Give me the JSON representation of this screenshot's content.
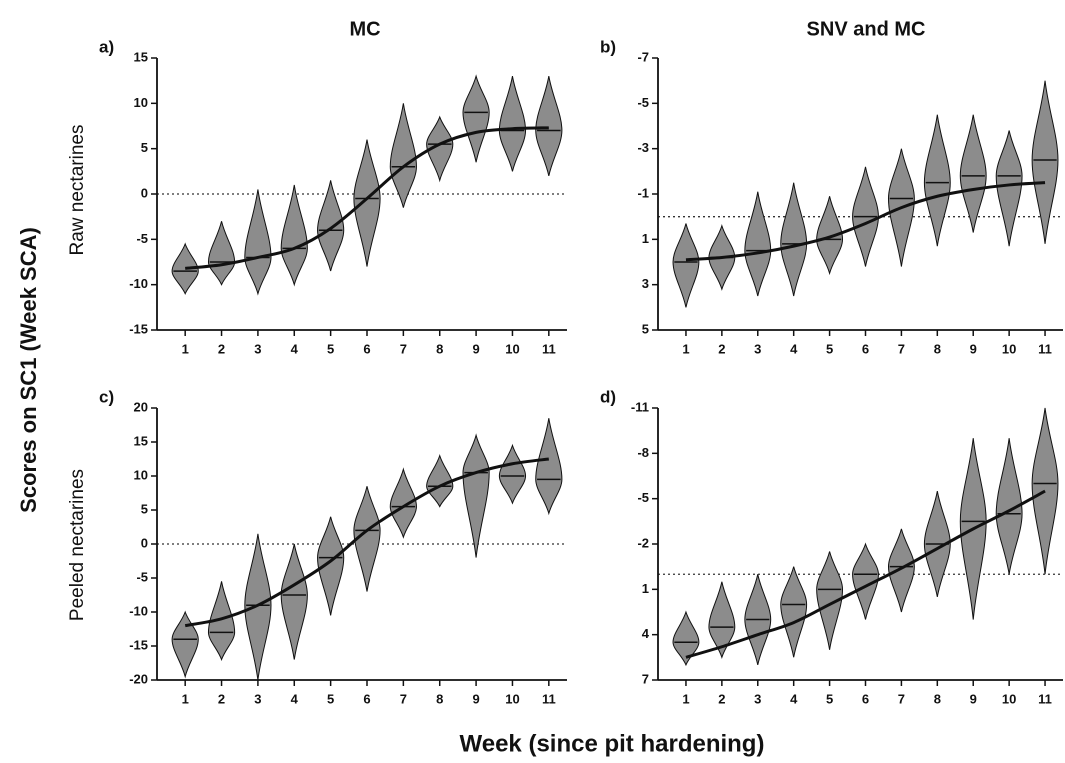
{
  "figure": {
    "y_label": "Scores on SC1 (Week SCA)",
    "x_label": "Week (since pit hardening)",
    "column_titles": [
      "MC",
      "SNV and MC"
    ],
    "row_labels": [
      "Raw nectarines",
      "Peeled nectarines"
    ]
  },
  "chart_data": [
    {
      "type": "violin",
      "panel": "a)",
      "categories": [
        "1",
        "2",
        "3",
        "4",
        "5",
        "6",
        "7",
        "8",
        "9",
        "10",
        "11"
      ],
      "medians": [
        -8.5,
        -7.5,
        -7,
        -6,
        -4,
        -0.5,
        3,
        5.5,
        9,
        7,
        7
      ],
      "mins": [
        -11,
        -10,
        -11,
        -10,
        -8.5,
        -8,
        -1.5,
        1.5,
        3.5,
        2.5,
        2
      ],
      "maxs": [
        -5.5,
        -3,
        0.5,
        1,
        1.5,
        6,
        10,
        8.5,
        13,
        13,
        13
      ],
      "fit": [
        -8.2,
        -7.8,
        -7,
        -6,
        -3.8,
        -0.5,
        3,
        5.5,
        6.8,
        7.2,
        7.3
      ],
      "reference_line": 0,
      "color": "#8c8c8c",
      "ylim": [
        -15,
        15
      ],
      "yticks": [
        -15,
        -10,
        -5,
        0,
        5,
        10,
        15
      ]
    },
    {
      "type": "violin",
      "panel": "b)",
      "categories": [
        "1",
        "2",
        "3",
        "4",
        "5",
        "6",
        "7",
        "8",
        "9",
        "10",
        "11"
      ],
      "medians": [
        2,
        1.8,
        1.5,
        1.2,
        1,
        0,
        -0.8,
        -1.5,
        -1.8,
        -1.8,
        -2.5
      ],
      "mins": [
        0.3,
        0.4,
        -1.1,
        -1.5,
        -0.9,
        -2.2,
        -3,
        -4.5,
        -4.5,
        -3.8,
        -6
      ],
      "maxs": [
        4,
        3.2,
        3.5,
        3.5,
        2.5,
        2.2,
        2.2,
        1.3,
        0.7,
        1.3,
        1.2
      ],
      "fit": [
        1.9,
        1.8,
        1.6,
        1.3,
        0.9,
        0.3,
        -0.4,
        -0.9,
        -1.2,
        -1.4,
        -1.5
      ],
      "reference_line": 0,
      "color": "#8c8c8c",
      "ylim": [
        5,
        -7
      ],
      "yticks": [
        -7,
        -5,
        -3,
        -1,
        1,
        3,
        5
      ]
    },
    {
      "type": "violin",
      "panel": "c)",
      "categories": [
        "1",
        "2",
        "3",
        "4",
        "5",
        "6",
        "7",
        "8",
        "9",
        "10",
        "11"
      ],
      "medians": [
        -14,
        -13,
        -9,
        -7.5,
        -2,
        2,
        5.5,
        8.5,
        10.5,
        10,
        9.5
      ],
      "mins": [
        -19.5,
        -17,
        -20,
        -17,
        -10.5,
        -7,
        1,
        5.5,
        -2,
        6,
        4.5
      ],
      "maxs": [
        -10,
        -5.5,
        1.5,
        0,
        4,
        8.5,
        11,
        13,
        16,
        14.5,
        18.5
      ],
      "fit": [
        -12,
        -11,
        -9,
        -6,
        -2.5,
        2,
        5.5,
        8.5,
        10.5,
        11.8,
        12.5
      ],
      "reference_line": 0,
      "color": "#8c8c8c",
      "ylim": [
        -20,
        20
      ],
      "yticks": [
        -20,
        -15,
        -10,
        -5,
        0,
        5,
        10,
        15,
        20
      ]
    },
    {
      "type": "violin",
      "panel": "d)",
      "categories": [
        "1",
        "2",
        "3",
        "4",
        "5",
        "6",
        "7",
        "8",
        "9",
        "10",
        "11"
      ],
      "medians": [
        4.5,
        3.5,
        3,
        2,
        1,
        0,
        -0.5,
        -2,
        -3.5,
        -4,
        -6
      ],
      "mins": [
        2.5,
        0.5,
        0,
        -0.5,
        -1.5,
        -2,
        -3,
        -5.5,
        -9,
        -9,
        -11
      ],
      "maxs": [
        6,
        5.5,
        6,
        5.5,
        5,
        3,
        2.5,
        1.5,
        3,
        0,
        0
      ],
      "fit": [
        5.5,
        4.8,
        4,
        3.2,
        2,
        0.8,
        -0.4,
        -1.7,
        -3,
        -4.2,
        -5.5
      ],
      "reference_line": 0,
      "color": "#8c8c8c",
      "ylim": [
        7,
        -11
      ],
      "yticks": [
        -11,
        -8,
        -5,
        -2,
        1,
        4,
        7
      ]
    }
  ]
}
